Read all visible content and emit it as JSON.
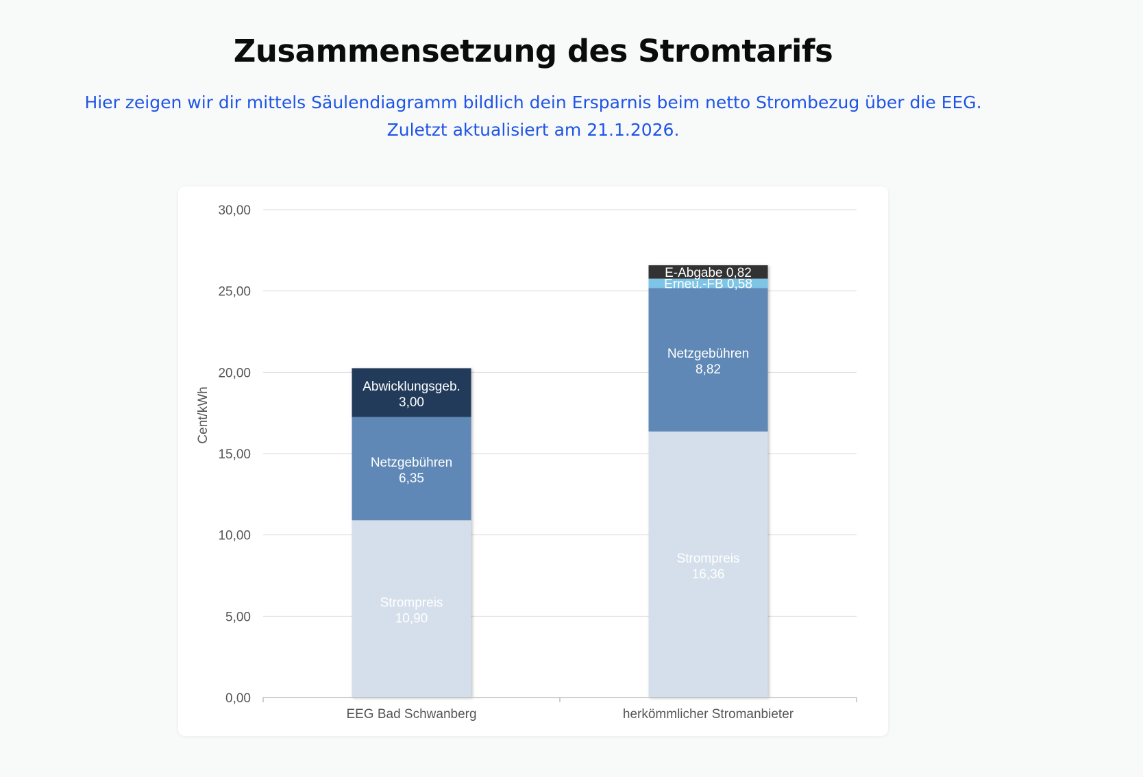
{
  "header": {
    "title": "Zusammensetzung des Stromtarifs",
    "subtitle_line1": "Hier zeigen wir dir mittels Säulendiagramm bildlich dein Ersparnis beim netto Strombezug über die EEG.",
    "subtitle_line2": "Zuletzt aktualisiert am 21.1.2026."
  },
  "colors": {
    "title": "#0b0b0b",
    "subtitle": "#1f55e6",
    "strompreis": "#d5dfeb",
    "netzgebuehren": "#5f88b6",
    "abwicklungsgeb": "#243a5a",
    "erneu_fb": "#7ec4e6",
    "e_abgabe": "#333333",
    "grid": "#d9d9d9"
  },
  "chart_data": {
    "type": "bar",
    "stacked": true,
    "categories": [
      "EEG Bad Schwanberg",
      "herkömmlicher Stromanbieter"
    ],
    "ylabel": "Cent/kWh",
    "ylim": [
      0,
      30
    ],
    "yticks": [
      "0,00",
      "5,00",
      "10,00",
      "15,00",
      "20,00",
      "25,00",
      "30,00"
    ],
    "grid": true,
    "bars": [
      {
        "category": "EEG Bad Schwanberg",
        "segments": [
          {
            "name": "Strompreis",
            "value": 10.9,
            "value_label": "10,90",
            "color_key": "strompreis",
            "text_color": "#ffffff",
            "layout": "two-line"
          },
          {
            "name": "Netzgebühren",
            "value": 6.35,
            "value_label": "6,35",
            "color_key": "netzgebuehren",
            "text_color": "#ffffff",
            "layout": "two-line"
          },
          {
            "name": "Abwicklungsgeb.",
            "value": 3.0,
            "value_label": "3,00",
            "color_key": "abwicklungsgeb",
            "text_color": "#ffffff",
            "layout": "two-line"
          }
        ]
      },
      {
        "category": "herkömmlicher Stromanbieter",
        "segments": [
          {
            "name": "Strompreis",
            "value": 16.36,
            "value_label": "16,36",
            "color_key": "strompreis",
            "text_color": "#ffffff",
            "layout": "two-line"
          },
          {
            "name": "Netzgebühren",
            "value": 8.82,
            "value_label": "8,82",
            "color_key": "netzgebuehren",
            "text_color": "#ffffff",
            "layout": "two-line"
          },
          {
            "name": "Erneu.-FB",
            "value": 0.58,
            "value_label": "0,58",
            "color_key": "erneu_fb",
            "text_color": "#ffffff",
            "layout": "one-line"
          },
          {
            "name": "E-Abgabe",
            "value": 0.82,
            "value_label": "0,82",
            "color_key": "e_abgabe",
            "text_color": "#ffffff",
            "layout": "one-line"
          }
        ]
      }
    ]
  }
}
